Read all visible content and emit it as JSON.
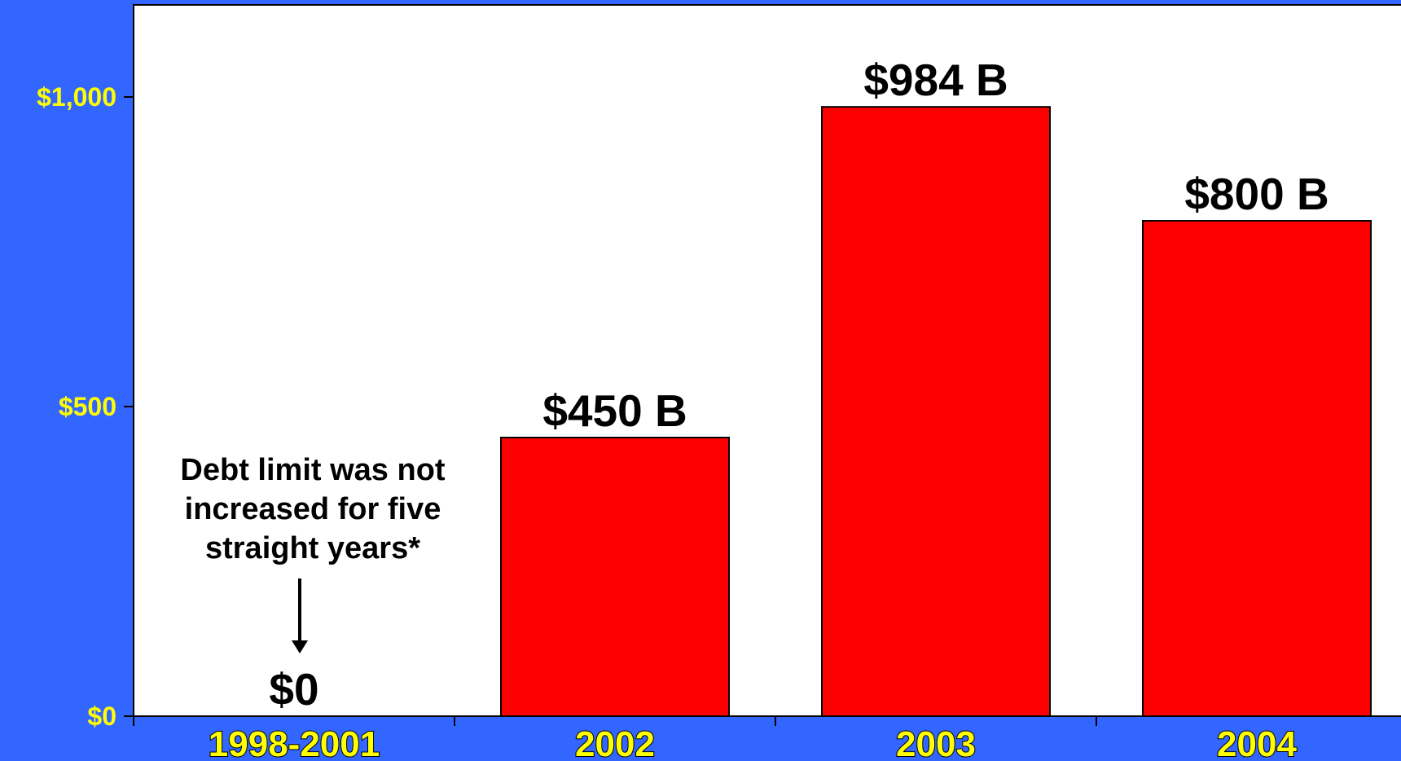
{
  "chart_data": {
    "type": "bar",
    "categories": [
      "1998-2001",
      "2002",
      "2003",
      "2004"
    ],
    "values": [
      0,
      450,
      984,
      800
    ],
    "data_labels": [
      "$0",
      "$450 B",
      "$984 B",
      "$800 B"
    ],
    "yticks": [
      {
        "value": 0,
        "label": "$0"
      },
      {
        "value": 500,
        "label": "$500"
      },
      {
        "value": 1000,
        "label": "$1,000"
      }
    ],
    "ylim": [
      0,
      1150
    ],
    "title": "",
    "xlabel": "",
    "ylabel": "",
    "grid": false,
    "colors": {
      "background": "#3366ff",
      "plot_area": "#ffffff",
      "bar": "#ff0000",
      "tick_label": "#ffff00",
      "data_label": "#000000"
    },
    "annotation": {
      "lines": [
        "Debt limit was not",
        "increased for five",
        "straight years*"
      ],
      "points_to": "1998-2001"
    }
  }
}
